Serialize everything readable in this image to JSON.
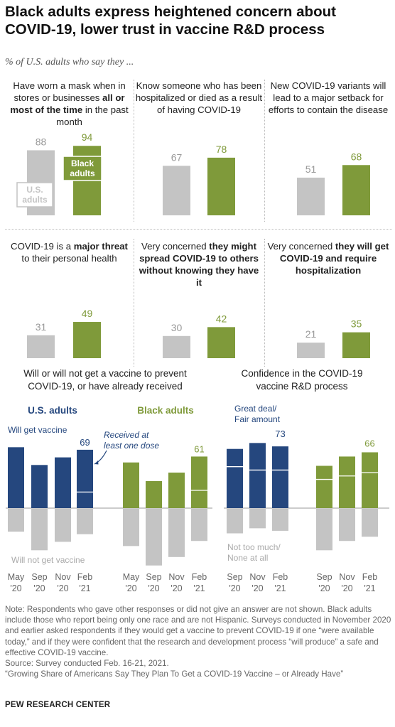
{
  "title": "Black adults express heightened concern about COVID-19, lower trust in vaccine R&D process",
  "subtitle": "% of U.S. adults who say they ...",
  "colors": {
    "us": "#c4c4c4",
    "black": "#7f9a3a",
    "us_vax": "#25477e",
    "us_label": "#25477e",
    "black_label": "#7f9a3a",
    "value_gray": "#999999"
  },
  "chart_data": [
    {
      "type": "bar",
      "title_parts": [
        "Have worn a mask when in stores or businesses ",
        "all or most of the time",
        " in the past month"
      ],
      "categories": [
        "U.S. adults",
        "Black adults"
      ],
      "values": [
        88,
        94
      ],
      "legend_labels": {
        "us": "U.S. adults",
        "black": "Black adults"
      }
    },
    {
      "type": "bar",
      "title_parts": [
        "Know someone who has been hospitalized or died as a result of having COVID-19"
      ],
      "categories": [
        "U.S. adults",
        "Black adults"
      ],
      "values": [
        67,
        78
      ]
    },
    {
      "type": "bar",
      "title_parts": [
        "New COVID-19 variants will lead to a major setback for efforts to contain the disease"
      ],
      "categories": [
        "U.S. adults",
        "Black adults"
      ],
      "values": [
        51,
        68
      ]
    },
    {
      "type": "bar",
      "title_parts": [
        "COVID-19 is a ",
        "major threat",
        " to their personal health"
      ],
      "categories": [
        "U.S. adults",
        "Black adults"
      ],
      "values": [
        31,
        49
      ]
    },
    {
      "type": "bar",
      "title_parts": [
        "Very concerned",
        " they might spread COVID-19 to others without knowing they have it"
      ],
      "categories": [
        "U.S. adults",
        "Black adults"
      ],
      "values": [
        30,
        42
      ]
    },
    {
      "type": "bar",
      "title_parts": [
        "Very concerned",
        " they will get COVID-19 and require hospitalization"
      ],
      "categories": [
        "U.S. adults",
        "Black adults"
      ],
      "values": [
        21,
        35
      ]
    },
    {
      "type": "bar",
      "title": "Will or will not get a vaccine to prevent COVID-19, or have already received",
      "groups": [
        {
          "name": "U.S. adults",
          "categories": [
            "May '20",
            "Sep '20",
            "Nov '20",
            "Feb '21"
          ],
          "positive": [
            72,
            51,
            60,
            69
          ],
          "negative": [
            27,
            49,
            39,
            30
          ],
          "received": [
            null,
            null,
            null,
            19
          ]
        },
        {
          "name": "Black adults",
          "categories": [
            "May '20",
            "Sep '20",
            "Nov '20",
            "Feb '21"
          ],
          "positive": [
            54,
            32,
            42,
            61
          ],
          "negative": [
            44,
            67,
            57,
            38
          ],
          "received": [
            null,
            null,
            null,
            21
          ]
        }
      ],
      "annotations": {
        "positive": "Will get vaccine",
        "negative": "Will not get vaccine",
        "received": "Received at least one dose"
      },
      "labeled_values": [
        "69",
        "61"
      ]
    },
    {
      "type": "bar",
      "title": "Confidence in the COVID-19 vaccine R&D process",
      "groups": [
        {
          "name": "U.S. adults",
          "categories": [
            "Sep '20",
            "Nov '20",
            "Feb '21"
          ],
          "positive": [
            70,
            77,
            73
          ],
          "negative": [
            29,
            23,
            26
          ],
          "previous_marker": [
            49,
            45,
            45
          ]
        },
        {
          "name": "Black adults",
          "categories": [
            "Sep '20",
            "Nov '20",
            "Feb '21"
          ],
          "positive": [
            50,
            61,
            66
          ],
          "negative": [
            49,
            38,
            33
          ],
          "previous_marker": [
            34,
            38,
            42
          ]
        }
      ],
      "annotations": {
        "positive": "Great deal/ Fair amount",
        "negative": "Not too much/ None at all"
      },
      "labeled_values": [
        "73",
        "66"
      ]
    }
  ],
  "note": "Note: Respondents who gave other responses or did not give an answer are not shown. Black adults include those who report being only one race and are not Hispanic. Surveys conducted in November 2020 and earlier asked respondents if they would get a vaccine to prevent COVID-19 if one “were available today,” and if they were confident that the research and development process “will produce” a safe and effective COVID-19 vaccine.",
  "source": "Source: Survey conducted Feb. 16-21, 2021.",
  "report": "“Growing Share of Americans Say They Plan To Get a COVID-19 Vaccine – or Already Have”",
  "org": "PEW RESEARCH CENTER"
}
